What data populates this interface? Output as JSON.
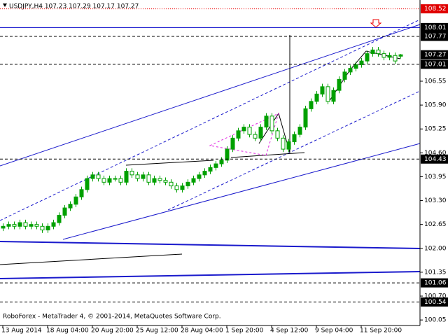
{
  "chart_data": {
    "type": "candlestick",
    "title": "USDJPY,H4  107.23 107.29 107.17 107.27",
    "footer": "RoboForex - MetaTrader 4, © 2001-2014, MetaQuotes Software Corp.",
    "categories": [
      "13 Aug 2014",
      null,
      null,
      null,
      null,
      null,
      null,
      null,
      "18 Aug 04:00",
      null,
      null,
      null,
      null,
      null,
      null,
      null,
      "20 Aug 20:00",
      null,
      null,
      null,
      null,
      null,
      null,
      null,
      "25 Aug 12:00",
      null,
      null,
      null,
      null,
      null,
      null,
      null,
      "28 Aug 04:00",
      null,
      null,
      null,
      null,
      null,
      null,
      null,
      "1 Sep 20:00",
      null,
      null,
      null,
      null,
      null,
      null,
      null,
      "4 Sep 12:00",
      null,
      null,
      null,
      null,
      null,
      null,
      null,
      "9 Sep 04:00",
      null,
      null,
      null,
      null,
      null,
      null,
      null,
      "11 Sep 20:00",
      null,
      null,
      null,
      null,
      null,
      null,
      null
    ],
    "open": [
      102.55,
      102.6,
      102.65,
      102.6,
      102.7,
      102.6,
      102.65,
      102.6,
      102.5,
      102.6,
      102.7,
      102.9,
      103.1,
      103.2,
      103.4,
      103.6,
      103.9,
      104.0,
      103.9,
      103.8,
      103.9,
      103.9,
      103.8,
      104.1,
      104.0,
      103.9,
      104.0,
      103.8,
      103.9,
      103.85,
      103.8,
      103.7,
      103.6,
      103.7,
      103.8,
      103.9,
      104.0,
      104.1,
      104.2,
      104.3,
      104.4,
      104.7,
      105.0,
      105.2,
      105.3,
      105.1,
      105.0,
      105.3,
      105.6,
      105.2,
      105.0,
      104.7,
      104.9,
      105.1,
      105.3,
      105.8,
      106.0,
      106.2,
      106.4,
      106.0,
      106.3,
      106.6,
      106.8,
      106.9,
      107.0,
      107.1,
      107.3,
      107.4,
      107.3,
      107.2,
      107.25,
      107.23
    ],
    "high": [
      102.68,
      102.73,
      102.73,
      102.78,
      102.78,
      102.73,
      102.73,
      102.68,
      102.68,
      102.78,
      102.98,
      103.18,
      103.28,
      103.48,
      103.68,
      103.98,
      104.08,
      104.08,
      103.98,
      103.98,
      103.98,
      103.98,
      104.18,
      104.18,
      104.08,
      104.08,
      104.08,
      103.98,
      103.98,
      103.93,
      103.88,
      103.78,
      103.78,
      103.88,
      103.98,
      104.08,
      104.18,
      104.28,
      104.38,
      104.48,
      104.78,
      105.08,
      105.28,
      105.38,
      105.38,
      105.18,
      105.38,
      105.68,
      105.68,
      105.28,
      105.08,
      104.98,
      105.18,
      105.38,
      105.88,
      106.08,
      106.28,
      106.48,
      106.48,
      106.38,
      106.68,
      106.88,
      106.98,
      107.08,
      107.18,
      107.38,
      107.48,
      107.48,
      107.38,
      107.33,
      107.33,
      107.29
    ],
    "low": [
      102.47,
      102.52,
      102.52,
      102.52,
      102.52,
      102.52,
      102.52,
      102.42,
      102.42,
      102.52,
      102.62,
      102.82,
      103.02,
      103.12,
      103.32,
      103.52,
      103.82,
      103.82,
      103.72,
      103.72,
      103.82,
      103.72,
      103.72,
      103.92,
      103.82,
      103.82,
      103.72,
      103.72,
      103.77,
      103.72,
      103.62,
      103.52,
      103.52,
      103.62,
      103.72,
      103.82,
      103.92,
      104.02,
      104.12,
      104.22,
      104.32,
      104.62,
      104.92,
      105.12,
      105.02,
      104.92,
      104.92,
      105.22,
      105.12,
      104.92,
      104.62,
      104.62,
      104.82,
      105.02,
      105.22,
      105.72,
      105.92,
      106.12,
      105.92,
      105.92,
      106.22,
      106.52,
      106.72,
      106.82,
      106.92,
      107.02,
      107.22,
      107.22,
      107.12,
      107.12,
      107.02,
      107.17
    ],
    "close": [
      102.6,
      102.65,
      102.6,
      102.7,
      102.6,
      102.65,
      102.6,
      102.5,
      102.6,
      102.7,
      102.9,
      103.1,
      103.2,
      103.4,
      103.6,
      103.9,
      104.0,
      103.9,
      103.8,
      103.9,
      103.9,
      103.8,
      104.1,
      104.0,
      103.9,
      104.0,
      103.8,
      103.9,
      103.85,
      103.8,
      103.7,
      103.6,
      103.7,
      103.8,
      103.9,
      104.0,
      104.1,
      104.2,
      104.3,
      104.4,
      104.7,
      105.0,
      105.2,
      105.3,
      105.1,
      105.0,
      105.3,
      105.6,
      105.2,
      105.0,
      104.7,
      104.9,
      105.1,
      105.3,
      105.8,
      106.0,
      106.2,
      106.4,
      106.0,
      106.3,
      106.6,
      106.8,
      106.9,
      107.0,
      107.1,
      107.3,
      107.4,
      107.3,
      107.2,
      107.25,
      107.1,
      107.27
    ],
    "ylim": [
      99.9,
      108.76
    ],
    "yticks": [
      106.55,
      {
        "value": 105.9,
        "label": "105.90"
      },
      105.25,
      {
        "value": 104.6,
        "label": "104.60"
      },
      103.95,
      {
        "value": 103.3,
        "label": "103.30"
      },
      102.65,
      {
        "value": 102.0,
        "label": "102.00"
      },
      101.35,
      {
        "value": 100.7,
        "label": "100.70"
      },
      100.05
    ],
    "levels": [
      108.01,
      107.77,
      107.01,
      104.43,
      101.06,
      100.54
    ],
    "alert_price": 108.52,
    "current_price": 107.27,
    "up_color": "#00a000",
    "down_color": "#ffffff",
    "level_color": "#0000c8"
  }
}
